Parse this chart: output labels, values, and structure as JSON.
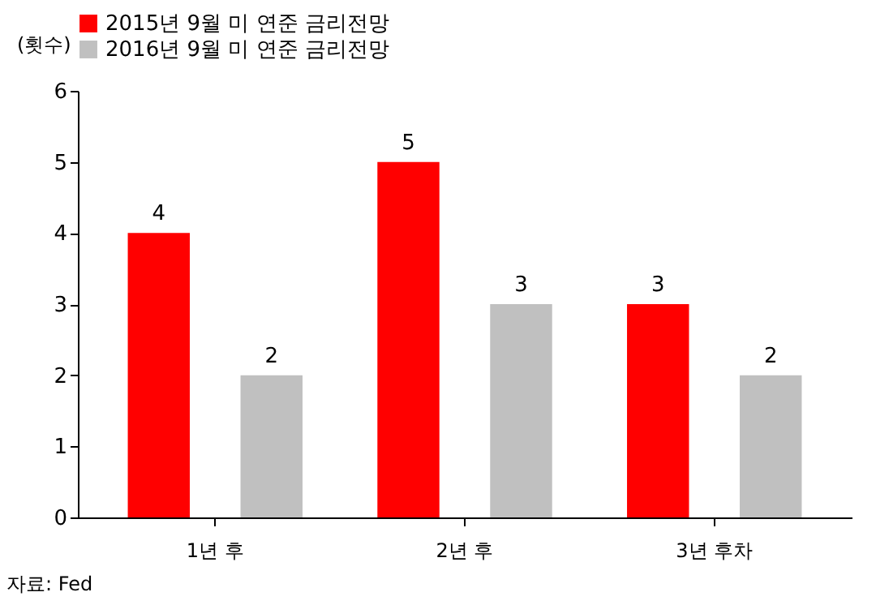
{
  "chart_data": {
    "type": "bar",
    "ylabel": "(횟수)",
    "categories": [
      "1년 후",
      "2년 후",
      "3년 후차"
    ],
    "series": [
      {
        "name": "2015년 9월 미 연준 금리전망",
        "color": "#ff0000",
        "values": [
          4,
          5,
          3
        ]
      },
      {
        "name": "2016년 9월 미 연준 금리전망",
        "color": "#c0c0c0",
        "values": [
          2,
          3,
          2
        ]
      }
    ],
    "ylim": [
      0,
      6
    ],
    "yticks": [
      0,
      1,
      2,
      3,
      4,
      5,
      6
    ],
    "grid": false,
    "legend": "top",
    "data_labels": true,
    "annotations": [
      "자료: Fed"
    ]
  }
}
